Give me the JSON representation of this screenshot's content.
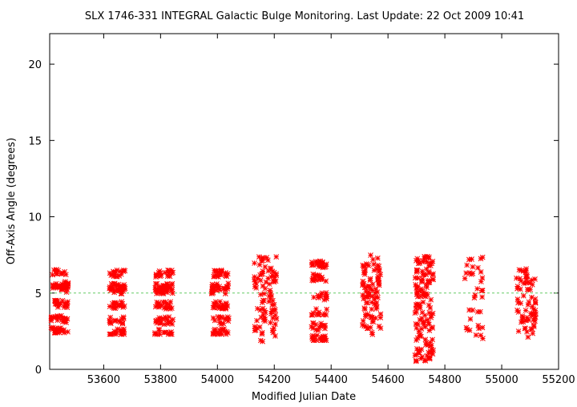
{
  "chart_data": {
    "type": "scatter",
    "title": "SLX 1746-331   INTEGRAL Galactic Bulge Monitoring.  Last Update: 22 Oct 2009 10:41",
    "xlabel": "Modified Julian Date",
    "ylabel": "Off-Axis Angle (degrees)",
    "xlim": [
      53410,
      55200
    ],
    "ylim": [
      0,
      22
    ],
    "x_ticks": [
      53600,
      53800,
      54000,
      54200,
      54400,
      54600,
      54800,
      55000,
      55200
    ],
    "y_ticks": [
      0,
      5,
      10,
      15,
      20
    ],
    "grid": false,
    "reference_line": {
      "y": 5,
      "color": "#66cc66",
      "style": "dashed"
    },
    "marker": {
      "symbol": "asterisk",
      "color": "#ff0000"
    },
    "groups": [
      {
        "x_start": 53415,
        "x_end": 53475,
        "y_min": 2.4,
        "y_max": 6.6,
        "count": 120,
        "banded": true
      },
      {
        "x_start": 53620,
        "x_end": 53675,
        "y_min": 2.3,
        "y_max": 6.5,
        "count": 105,
        "banded": true
      },
      {
        "x_start": 53780,
        "x_end": 53845,
        "y_min": 2.3,
        "y_max": 6.5,
        "count": 120,
        "banded": true
      },
      {
        "x_start": 53980,
        "x_end": 54040,
        "y_min": 2.3,
        "y_max": 6.5,
        "count": 110,
        "banded": true
      },
      {
        "x_start": 54130,
        "x_end": 54215,
        "y_min": 1.8,
        "y_max": 7.4,
        "count": 90,
        "banded": false
      },
      {
        "x_start": 54330,
        "x_end": 54385,
        "y_min": 1.9,
        "y_max": 7.1,
        "count": 95,
        "banded": true
      },
      {
        "x_start": 54510,
        "x_end": 54575,
        "y_min": 2.2,
        "y_max": 7.5,
        "count": 90,
        "banded": false
      },
      {
        "x_start": 54695,
        "x_end": 54760,
        "y_min": 0.5,
        "y_max": 7.4,
        "count": 140,
        "banded": false
      },
      {
        "x_start": 54870,
        "x_end": 54935,
        "y_min": 2.0,
        "y_max": 7.4,
        "count": 35,
        "banded": false
      },
      {
        "x_start": 55050,
        "x_end": 55120,
        "y_min": 2.1,
        "y_max": 6.6,
        "count": 70,
        "banded": false
      }
    ]
  }
}
